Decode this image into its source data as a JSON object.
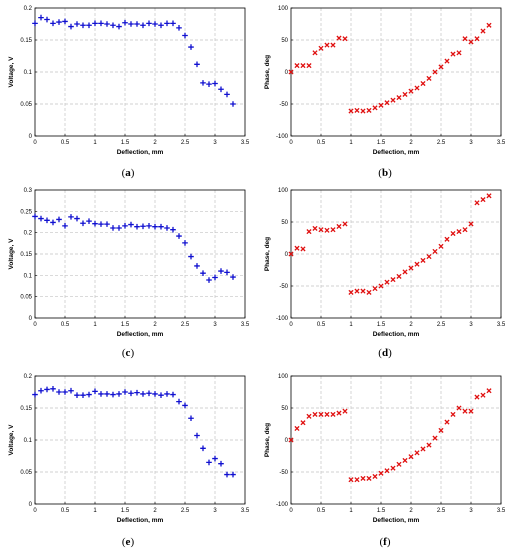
{
  "colors": {
    "voltage_series": "#1010d0",
    "phase_series": "#e01010",
    "grid": "#c4c4c4"
  },
  "chart_data": [
    {
      "type": "scatter",
      "caption": "a",
      "xlabel": "Deflection, mm",
      "ylabel": "Voltage, V",
      "xlim": [
        0,
        3.5
      ],
      "ylim": [
        0,
        0.2
      ],
      "xticks": [
        "0",
        "0.5",
        "1",
        "1.5",
        "2",
        "2.5",
        "3",
        "3.5"
      ],
      "yticks": [
        "0",
        "0.05",
        "0.1",
        "0.15",
        "0.2"
      ],
      "marker": "plus",
      "grid": true,
      "series": [
        {
          "points": [
            [
              0,
              0.176
            ],
            [
              0.1,
              0.185
            ],
            [
              0.2,
              0.182
            ],
            [
              0.3,
              0.176
            ],
            [
              0.4,
              0.178
            ],
            [
              0.5,
              0.179
            ],
            [
              0.6,
              0.171
            ],
            [
              0.7,
              0.175
            ],
            [
              0.8,
              0.173
            ],
            [
              0.9,
              0.173
            ],
            [
              1.0,
              0.176
            ],
            [
              1.1,
              0.176
            ],
            [
              1.2,
              0.175
            ],
            [
              1.3,
              0.173
            ],
            [
              1.4,
              0.171
            ],
            [
              1.5,
              0.177
            ],
            [
              1.6,
              0.175
            ],
            [
              1.7,
              0.175
            ],
            [
              1.8,
              0.173
            ],
            [
              1.9,
              0.176
            ],
            [
              2.0,
              0.175
            ],
            [
              2.1,
              0.173
            ],
            [
              2.2,
              0.176
            ],
            [
              2.3,
              0.176
            ],
            [
              2.4,
              0.169
            ],
            [
              2.5,
              0.157
            ],
            [
              2.6,
              0.139
            ],
            [
              2.7,
              0.112
            ],
            [
              2.8,
              0.083
            ],
            [
              2.9,
              0.081
            ],
            [
              3.0,
              0.082
            ],
            [
              3.1,
              0.073
            ],
            [
              3.2,
              0.065
            ],
            [
              3.3,
              0.05
            ]
          ]
        }
      ]
    },
    {
      "type": "scatter",
      "caption": "b",
      "xlabel": "Deflection, mm",
      "ylabel": "Phase, deg",
      "xlim": [
        0,
        3.5
      ],
      "ylim": [
        -100,
        100
      ],
      "xticks": [
        "0",
        "0.5",
        "1",
        "1.5",
        "2",
        "2.5",
        "3",
        "3.5"
      ],
      "yticks": [
        "-100",
        "-50",
        "0",
        "50",
        "100"
      ],
      "marker": "x",
      "grid": true,
      "series": [
        {
          "points": [
            [
              0,
              0
            ],
            [
              0.1,
              10
            ],
            [
              0.2,
              10
            ],
            [
              0.3,
              10
            ],
            [
              0.4,
              30
            ],
            [
              0.5,
              37
            ],
            [
              0.6,
              42
            ],
            [
              0.7,
              42
            ],
            [
              0.8,
              53
            ],
            [
              0.9,
              52
            ],
            [
              1.0,
              -61
            ],
            [
              1.1,
              -60
            ],
            [
              1.2,
              -61
            ],
            [
              1.3,
              -60
            ],
            [
              1.4,
              -56
            ],
            [
              1.5,
              -52
            ],
            [
              1.6,
              -48
            ],
            [
              1.7,
              -44
            ],
            [
              1.8,
              -40
            ],
            [
              1.9,
              -35
            ],
            [
              2.0,
              -30
            ],
            [
              2.1,
              -25
            ],
            [
              2.2,
              -18
            ],
            [
              2.3,
              -10
            ],
            [
              2.4,
              0
            ],
            [
              2.5,
              8
            ],
            [
              2.6,
              17
            ],
            [
              2.7,
              28
            ],
            [
              2.8,
              30
            ],
            [
              2.9,
              52
            ],
            [
              3.0,
              47
            ],
            [
              3.1,
              52
            ],
            [
              3.2,
              64
            ],
            [
              3.3,
              73
            ]
          ]
        }
      ]
    },
    {
      "type": "scatter",
      "caption": "c",
      "xlabel": "Deflection, mm",
      "ylabel": "Voltage, V",
      "xlim": [
        0,
        3.5
      ],
      "ylim": [
        0,
        0.3
      ],
      "xticks": [
        "0",
        "0.5",
        "1",
        "1.5",
        "2",
        "2.5",
        "3",
        "3.5"
      ],
      "yticks": [
        "0",
        "0.05",
        "0.1",
        "0.15",
        "0.2",
        "0.25",
        "0.3"
      ],
      "marker": "plus",
      "grid": true,
      "series": [
        {
          "points": [
            [
              0,
              0.238
            ],
            [
              0.1,
              0.233
            ],
            [
              0.2,
              0.229
            ],
            [
              0.3,
              0.224
            ],
            [
              0.4,
              0.231
            ],
            [
              0.5,
              0.216
            ],
            [
              0.6,
              0.237
            ],
            [
              0.7,
              0.233
            ],
            [
              0.8,
              0.222
            ],
            [
              0.9,
              0.227
            ],
            [
              1.0,
              0.221
            ],
            [
              1.1,
              0.22
            ],
            [
              1.2,
              0.22
            ],
            [
              1.3,
              0.211
            ],
            [
              1.4,
              0.211
            ],
            [
              1.5,
              0.216
            ],
            [
              1.6,
              0.219
            ],
            [
              1.7,
              0.214
            ],
            [
              1.8,
              0.215
            ],
            [
              1.9,
              0.216
            ],
            [
              2.0,
              0.214
            ],
            [
              2.1,
              0.214
            ],
            [
              2.2,
              0.211
            ],
            [
              2.3,
              0.207
            ],
            [
              2.4,
              0.192
            ],
            [
              2.5,
              0.176
            ],
            [
              2.6,
              0.144
            ],
            [
              2.7,
              0.122
            ],
            [
              2.8,
              0.105
            ],
            [
              2.9,
              0.089
            ],
            [
              3.0,
              0.095
            ],
            [
              3.1,
              0.11
            ],
            [
              3.2,
              0.107
            ],
            [
              3.3,
              0.096
            ]
          ]
        }
      ]
    },
    {
      "type": "scatter",
      "caption": "d",
      "xlabel": "Deflection, mm",
      "ylabel": "Phase, deg",
      "xlim": [
        0,
        3.5
      ],
      "ylim": [
        -100,
        100
      ],
      "xticks": [
        "0",
        "0.5",
        "1",
        "1.5",
        "2",
        "2.5",
        "3",
        "3.5"
      ],
      "yticks": [
        "-100",
        "-50",
        "0",
        "50",
        "100"
      ],
      "marker": "x",
      "grid": true,
      "series": [
        {
          "points": [
            [
              0,
              0
            ],
            [
              0.1,
              9
            ],
            [
              0.2,
              8
            ],
            [
              0.3,
              35
            ],
            [
              0.4,
              40
            ],
            [
              0.5,
              38
            ],
            [
              0.6,
              37
            ],
            [
              0.7,
              38
            ],
            [
              0.8,
              43
            ],
            [
              0.9,
              47
            ],
            [
              1.0,
              -60
            ],
            [
              1.1,
              -58
            ],
            [
              1.2,
              -58
            ],
            [
              1.3,
              -60
            ],
            [
              1.4,
              -54
            ],
            [
              1.5,
              -50
            ],
            [
              1.6,
              -44
            ],
            [
              1.7,
              -40
            ],
            [
              1.8,
              -35
            ],
            [
              1.9,
              -28
            ],
            [
              2.0,
              -22
            ],
            [
              2.1,
              -16
            ],
            [
              2.2,
              -10
            ],
            [
              2.3,
              -4
            ],
            [
              2.4,
              4
            ],
            [
              2.5,
              12
            ],
            [
              2.6,
              23
            ],
            [
              2.7,
              32
            ],
            [
              2.8,
              35
            ],
            [
              2.9,
              38
            ],
            [
              3.0,
              47
            ],
            [
              3.1,
              80
            ],
            [
              3.2,
              85
            ],
            [
              3.3,
              91
            ]
          ]
        }
      ]
    },
    {
      "type": "scatter",
      "caption": "e",
      "xlabel": "Deflection, mm",
      "ylabel": "Voltage, V",
      "xlim": [
        0,
        3.5
      ],
      "ylim": [
        0,
        0.2
      ],
      "xticks": [
        "0",
        "0.5",
        "1",
        "1.5",
        "2",
        "2.5",
        "3",
        "3.5"
      ],
      "yticks": [
        "0",
        "0.05",
        "0.1",
        "0.15",
        "0.2"
      ],
      "marker": "plus",
      "grid": true,
      "series": [
        {
          "points": [
            [
              0,
              0.171
            ],
            [
              0.1,
              0.177
            ],
            [
              0.2,
              0.179
            ],
            [
              0.3,
              0.18
            ],
            [
              0.4,
              0.175
            ],
            [
              0.5,
              0.175
            ],
            [
              0.6,
              0.177
            ],
            [
              0.7,
              0.17
            ],
            [
              0.8,
              0.17
            ],
            [
              0.9,
              0.171
            ],
            [
              1.0,
              0.176
            ],
            [
              1.1,
              0.172
            ],
            [
              1.2,
              0.172
            ],
            [
              1.3,
              0.171
            ],
            [
              1.4,
              0.172
            ],
            [
              1.5,
              0.175
            ],
            [
              1.6,
              0.173
            ],
            [
              1.7,
              0.174
            ],
            [
              1.8,
              0.172
            ],
            [
              1.9,
              0.173
            ],
            [
              2.0,
              0.172
            ],
            [
              2.1,
              0.17
            ],
            [
              2.2,
              0.172
            ],
            [
              2.3,
              0.171
            ],
            [
              2.4,
              0.16
            ],
            [
              2.5,
              0.154
            ],
            [
              2.6,
              0.134
            ],
            [
              2.7,
              0.107
            ],
            [
              2.8,
              0.087
            ],
            [
              2.9,
              0.065
            ],
            [
              3.0,
              0.071
            ],
            [
              3.1,
              0.063
            ],
            [
              3.2,
              0.046
            ],
            [
              3.3,
              0.046
            ]
          ]
        }
      ]
    },
    {
      "type": "scatter",
      "caption": "f",
      "xlabel": "Deflection, mm",
      "ylabel": "Phase, deg",
      "xlim": [
        0,
        3.5
      ],
      "ylim": [
        -100,
        100
      ],
      "xticks": [
        "0",
        "0.5",
        "1",
        "1.5",
        "2",
        "2.5",
        "3",
        "3.5"
      ],
      "yticks": [
        "-100",
        "-50",
        "0",
        "50",
        "100"
      ],
      "marker": "x",
      "grid": true,
      "series": [
        {
          "points": [
            [
              0,
              0
            ],
            [
              0.1,
              18
            ],
            [
              0.2,
              27
            ],
            [
              0.3,
              37
            ],
            [
              0.4,
              40
            ],
            [
              0.5,
              40
            ],
            [
              0.6,
              40
            ],
            [
              0.7,
              40
            ],
            [
              0.8,
              42
            ],
            [
              0.9,
              45
            ],
            [
              1.0,
              -62
            ],
            [
              1.1,
              -62
            ],
            [
              1.2,
              -60
            ],
            [
              1.3,
              -60
            ],
            [
              1.4,
              -57
            ],
            [
              1.5,
              -52
            ],
            [
              1.6,
              -48
            ],
            [
              1.7,
              -44
            ],
            [
              1.8,
              -38
            ],
            [
              1.9,
              -32
            ],
            [
              2.0,
              -26
            ],
            [
              2.1,
              -20
            ],
            [
              2.2,
              -14
            ],
            [
              2.3,
              -8
            ],
            [
              2.4,
              3
            ],
            [
              2.5,
              15
            ],
            [
              2.6,
              28
            ],
            [
              2.7,
              40
            ],
            [
              2.8,
              50
            ],
            [
              2.9,
              45
            ],
            [
              3.0,
              45
            ],
            [
              3.1,
              67
            ],
            [
              3.2,
              70
            ],
            [
              3.3,
              77
            ]
          ]
        }
      ]
    }
  ]
}
